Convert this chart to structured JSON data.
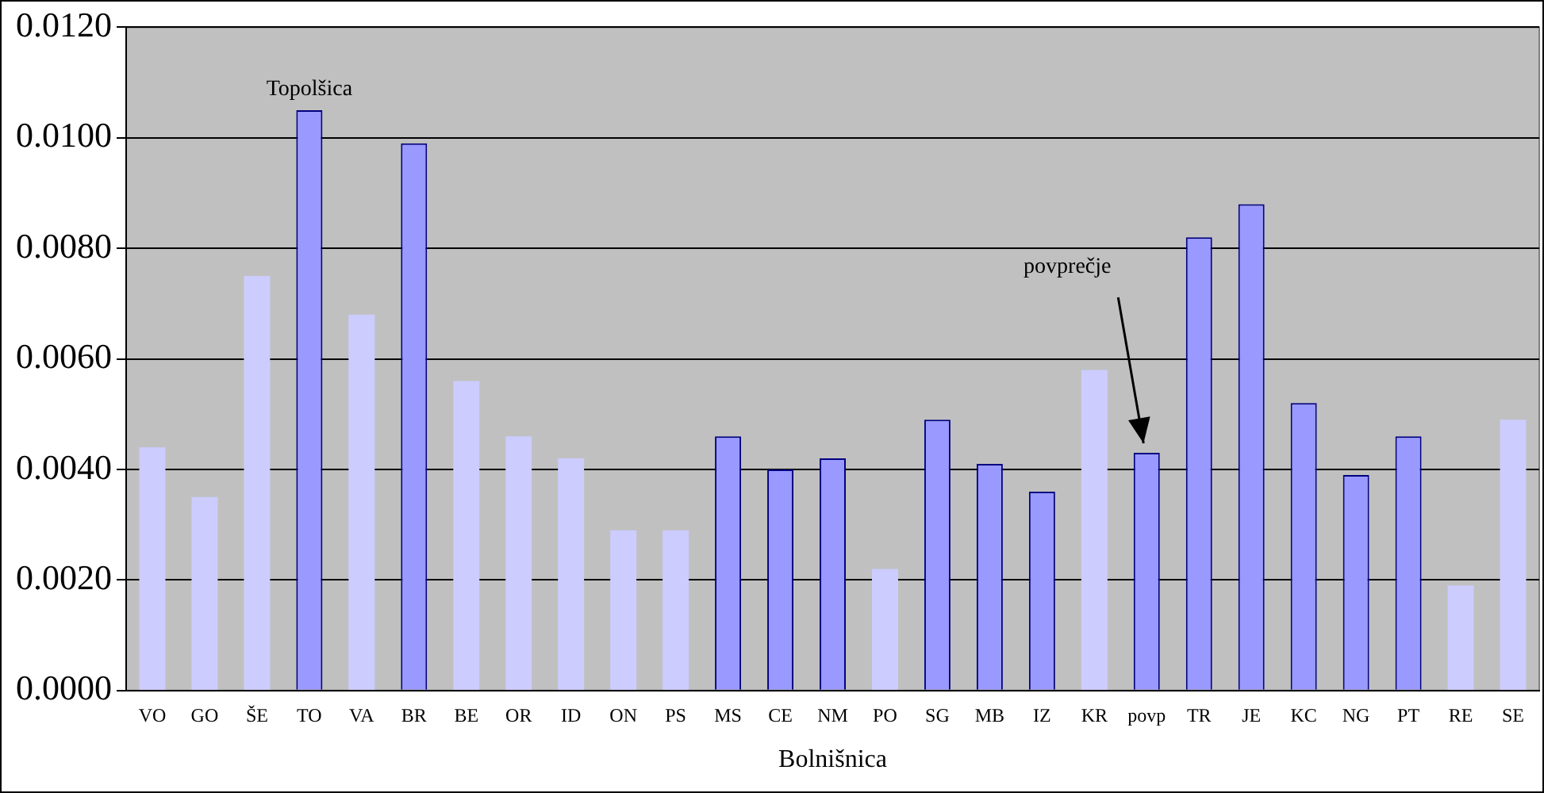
{
  "chart_data": {
    "type": "bar",
    "xlabel": "Bolnišnica",
    "categories": [
      "VO",
      "GO",
      "ŠE",
      "TO",
      "VA",
      "BR",
      "BE",
      "OR",
      "ID",
      "ON",
      "PS",
      "MS",
      "CE",
      "NM",
      "PO",
      "SG",
      "MB",
      "IZ",
      "KR",
      "povp",
      "TR",
      "JE",
      "KC",
      "NG",
      "PT",
      "RE",
      "SE"
    ],
    "values": [
      0.0044,
      0.0035,
      0.0075,
      0.0105,
      0.0068,
      0.0099,
      0.0056,
      0.0046,
      0.0042,
      0.0029,
      0.0029,
      0.0046,
      0.004,
      0.0042,
      0.0022,
      0.0049,
      0.0041,
      0.0036,
      0.0058,
      0.0043,
      0.0082,
      0.0088,
      0.0052,
      0.0039,
      0.0046,
      0.0019,
      0.0049
    ],
    "colors": [
      "#ccccff",
      "#ccccff",
      "#ccccff",
      "#9999ff",
      "#ccccff",
      "#9999ff",
      "#ccccff",
      "#ccccff",
      "#ccccff",
      "#ccccff",
      "#ccccff",
      "#9999ff",
      "#9999ff",
      "#9999ff",
      "#ccccff",
      "#9999ff",
      "#9999ff",
      "#9999ff",
      "#ccccff",
      "#9999ff",
      "#9999ff",
      "#9999ff",
      "#9999ff",
      "#9999ff",
      "#9999ff",
      "#ccccff",
      "#ccccff"
    ],
    "ylim": [
      0,
      0.012
    ],
    "yticks": [
      {
        "value": 0,
        "label": "0.0000"
      },
      {
        "value": 0.002,
        "label": "0.0020"
      },
      {
        "value": 0.004,
        "label": "0.0040"
      },
      {
        "value": 0.006,
        "label": "0.0060"
      },
      {
        "value": 0.008,
        "label": "0.0080"
      },
      {
        "value": 0.01,
        "label": "0.0100"
      },
      {
        "value": 0.012,
        "label": "0.0120"
      }
    ],
    "grid": "y",
    "legend": false,
    "annotations": [
      {
        "text": "Topolšica",
        "x": "TO",
        "y": 0.0105
      },
      {
        "text": "povprečje",
        "x": "povp",
        "y": 0.0043
      }
    ]
  }
}
